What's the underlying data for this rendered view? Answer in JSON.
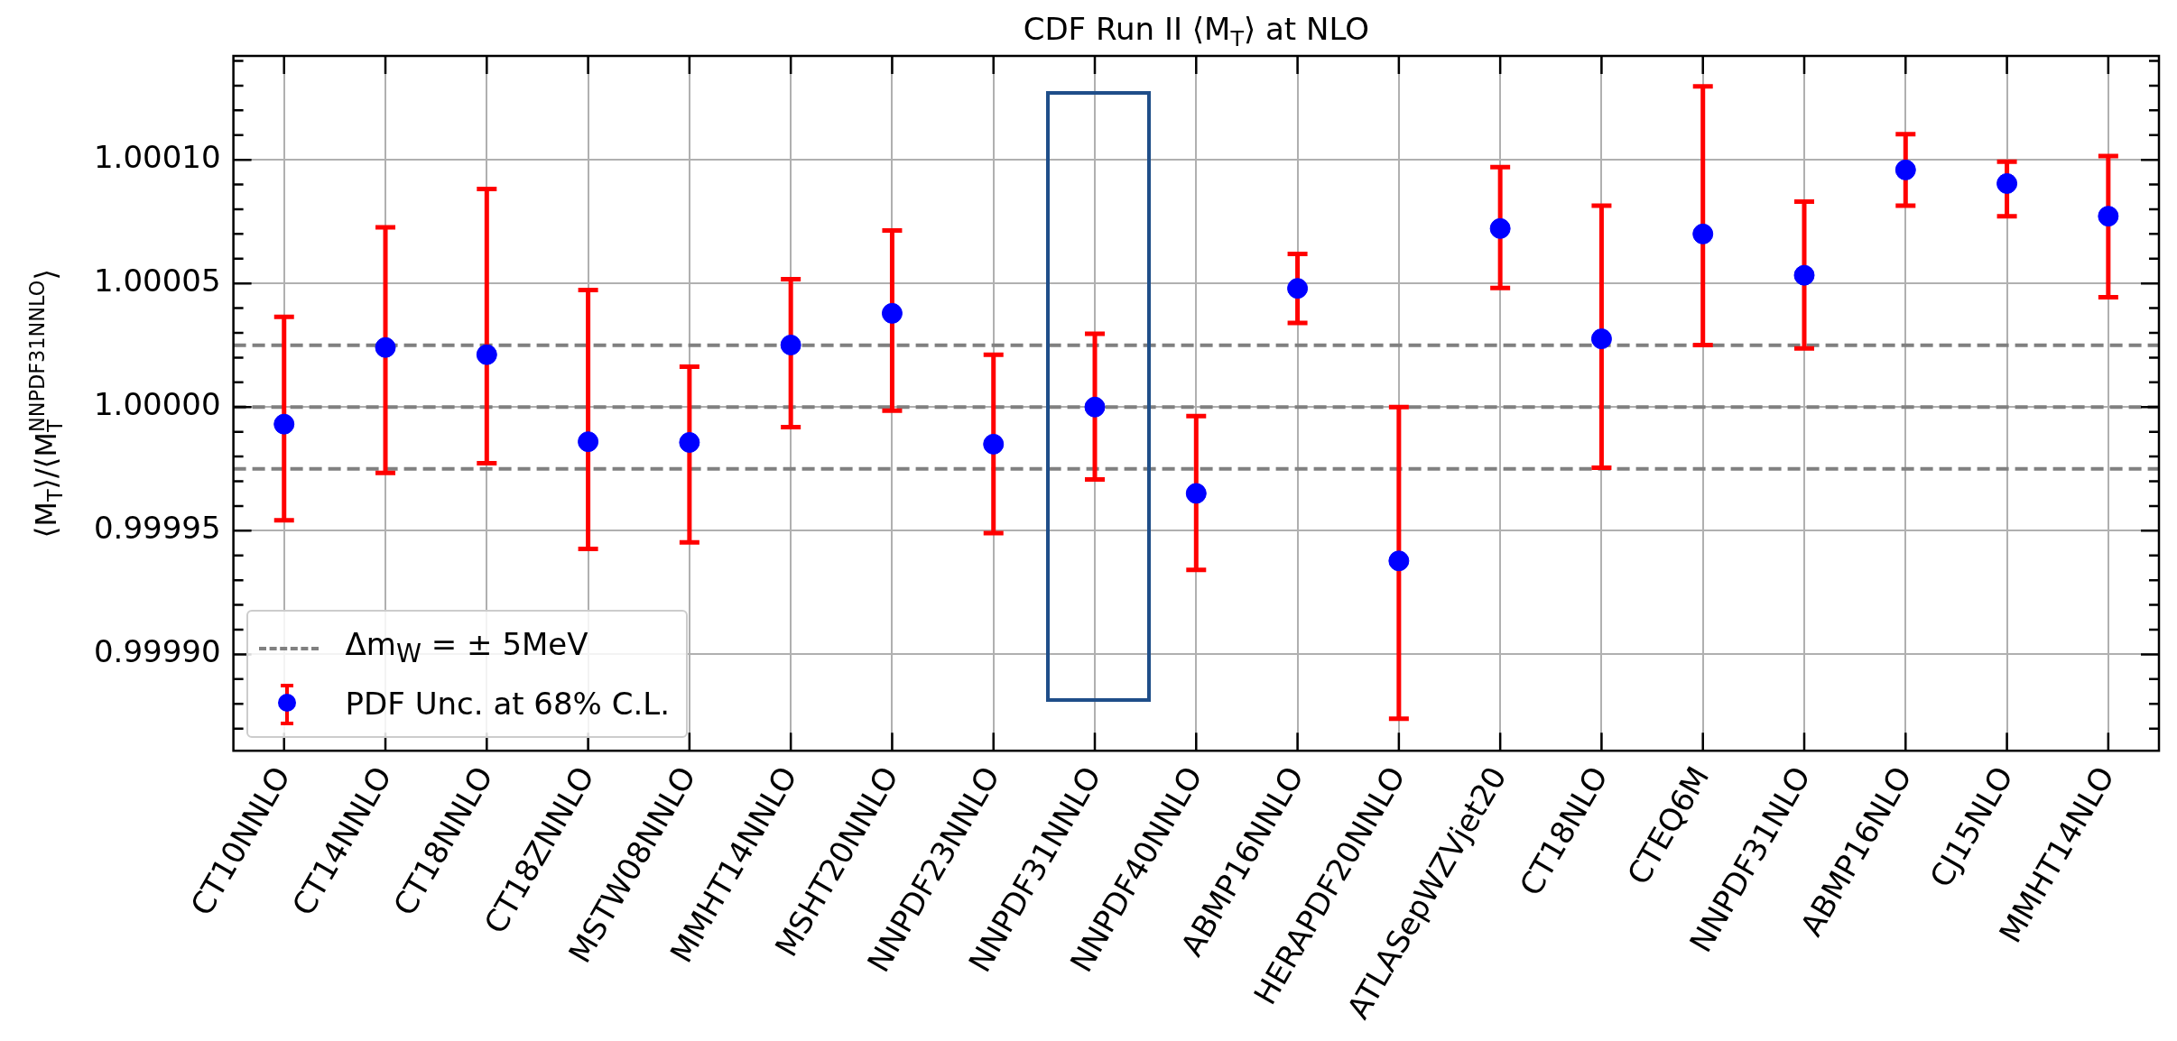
{
  "chart_data": {
    "type": "scatter",
    "title": "CDF Run II ⟨M$_{T}$⟩ at NLO",
    "ylabel": "⟨M$_{T}$⟩/⟨M$_{T}$$^{NNPDF31NNLO}$⟩",
    "categories": [
      "CT10NNLO",
      "CT14NNLO",
      "CT18NNLO",
      "CT18ZNNLO",
      "MSTW08NNLO",
      "MMHT14NNLO",
      "MSHT20NNLO",
      "NNPDF23NNLO",
      "NNPDF31NNLO",
      "NNPDF40NNLO",
      "ABMP16NNLO",
      "HERAPDF20NNLO",
      "ATLASepWZVjet20",
      "CT18NLO",
      "CTEQ6M",
      "NNPDF31NLO",
      "ABMP16NLO",
      "CJ15NLO",
      "MMHT14NLO"
    ],
    "series": [
      {
        "name": "PDF Unc. at 68% C.L.",
        "color": "#0000ff",
        "values": [
          0.9999931,
          1.0000241,
          1.0000212,
          0.999986,
          0.9999857,
          1.0000251,
          1.0000379,
          0.999985,
          1.0,
          0.9999651,
          1.000048,
          0.9999378,
          1.0000722,
          1.0000276,
          1.00007,
          1.0000533,
          1.0000959,
          1.0000904,
          1.0000772
        ],
        "errors": [
          [
            0.9999542,
            1.0000365
          ],
          [
            0.9999734,
            1.0000727
          ],
          [
            0.9999773,
            1.0000882
          ],
          [
            0.9999426,
            1.0000473
          ],
          [
            0.9999453,
            1.0000163
          ],
          [
            0.9999919,
            1.0000517
          ],
          [
            0.9999985,
            1.0000714
          ],
          [
            0.999949,
            1.0000212
          ],
          [
            0.9999707,
            1.0000296
          ],
          [
            0.9999342,
            0.9999964
          ],
          [
            1.000034,
            1.0000619
          ],
          [
            0.999874,
            1.0
          ],
          [
            1.0000482,
            1.000097
          ],
          [
            0.9999755,
            1.0000814
          ],
          [
            1.0000251,
            1.0001297
          ],
          [
            1.0000237,
            1.0000831
          ],
          [
            1.0000814,
            1.0001104
          ],
          [
            1.0000772,
            1.0000992
          ],
          [
            1.0000444,
            1.0001015
          ]
        ]
      }
    ],
    "ref_lines": [
      {
        "axis": "y",
        "value": 1.000025,
        "label": "Δm$_{W}$ = ± 5MeV",
        "color": "#808080",
        "line_style": "dashed"
      },
      {
        "axis": "y",
        "value": 1.0,
        "color": "#808080",
        "line_style": "dashed"
      },
      {
        "axis": "y",
        "value": 0.999975,
        "color": "#808080",
        "line_style": "dashed"
      }
    ],
    "ylim": [
      0.999861,
      1.000142
    ],
    "yticks": [
      {
        "value": 0.99987,
        "label": null
      },
      {
        "value": 0.99988,
        "label": null
      },
      {
        "value": 0.99989,
        "label": null
      },
      {
        "value": 0.9999,
        "label": "0.99990"
      },
      {
        "value": 0.99991,
        "label": null
      },
      {
        "value": 0.99992,
        "label": null
      },
      {
        "value": 0.99993,
        "label": null
      },
      {
        "value": 0.99994,
        "label": null
      },
      {
        "value": 0.99995,
        "label": "0.99995"
      },
      {
        "value": 0.99996,
        "label": null
      },
      {
        "value": 0.99997,
        "label": null
      },
      {
        "value": 0.99998,
        "label": null
      },
      {
        "value": 0.99999,
        "label": null
      },
      {
        "value": 1.0,
        "label": "1.00000"
      },
      {
        "value": 1.00001,
        "label": null
      },
      {
        "value": 1.00002,
        "label": null
      },
      {
        "value": 1.00003,
        "label": null
      },
      {
        "value": 1.00004,
        "label": null
      },
      {
        "value": 1.00005,
        "label": "1.00005"
      },
      {
        "value": 1.00006,
        "label": null
      },
      {
        "value": 1.00007,
        "label": null
      },
      {
        "value": 1.00008,
        "label": null
      },
      {
        "value": 1.00009,
        "label": null
      },
      {
        "value": 1.0001,
        "label": "1.00010"
      },
      {
        "value": 1.00011,
        "label": null
      },
      {
        "value": 1.00012,
        "label": null
      },
      {
        "value": 1.00013,
        "label": null
      },
      {
        "value": 1.00014,
        "label": null
      }
    ],
    "grid": true,
    "legend": "bottom left",
    "marker": "circle"
  }
}
